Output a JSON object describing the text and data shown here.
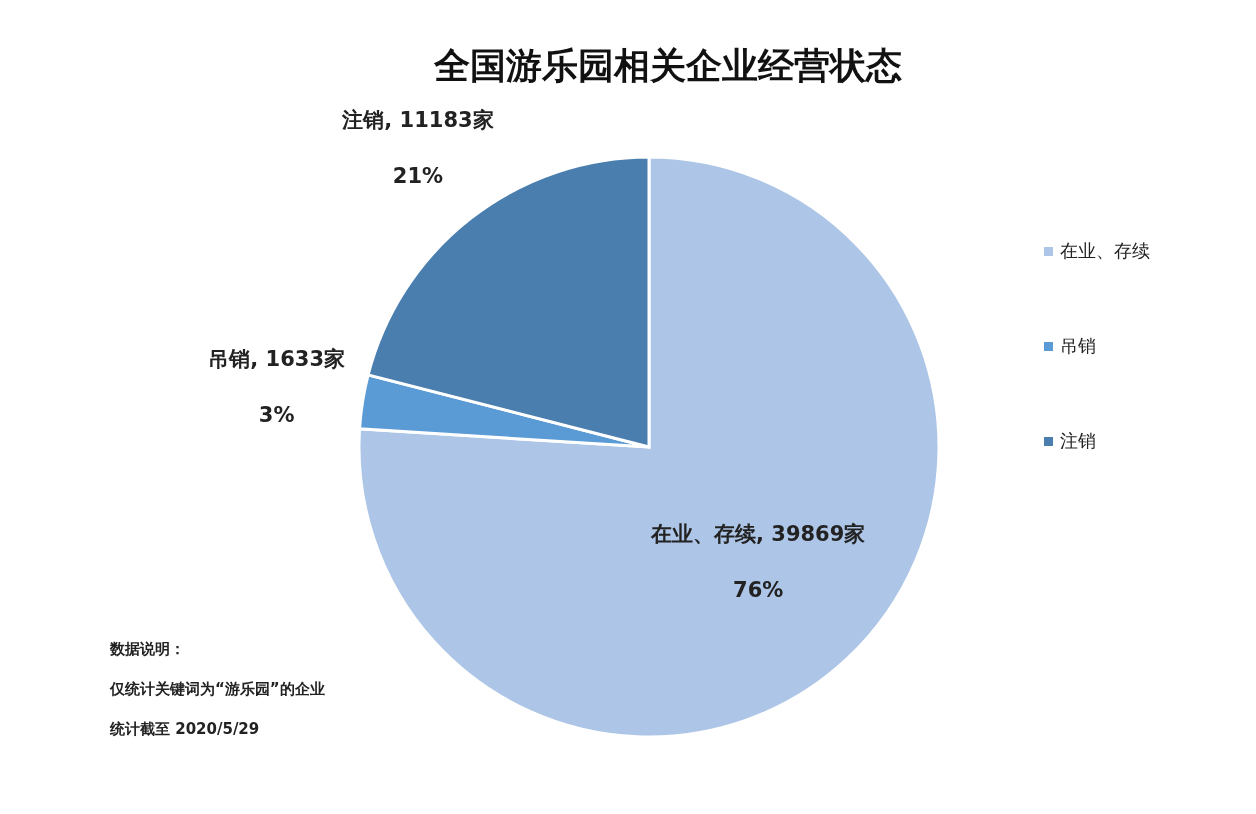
{
  "chart_data": {
    "type": "pie",
    "title": "全国游乐园相关企业经营状态",
    "categories": [
      "在业、存续",
      "吊销",
      "注销"
    ],
    "values": [
      76,
      3,
      21
    ],
    "colors": [
      "#adc5e6",
      "#5b9bd5",
      "#4a7eaf"
    ],
    "value_labels": [
      "在业、存续, 39869家\n76%",
      "吊销, 1633家\n3%",
      "注销, 11183家\n21%"
    ],
    "legend": "right",
    "annotations": [
      "数据说明：",
      "仅统计关键词为“游乐园”的企业",
      "统计截至 2020/5/29"
    ]
  }
}
